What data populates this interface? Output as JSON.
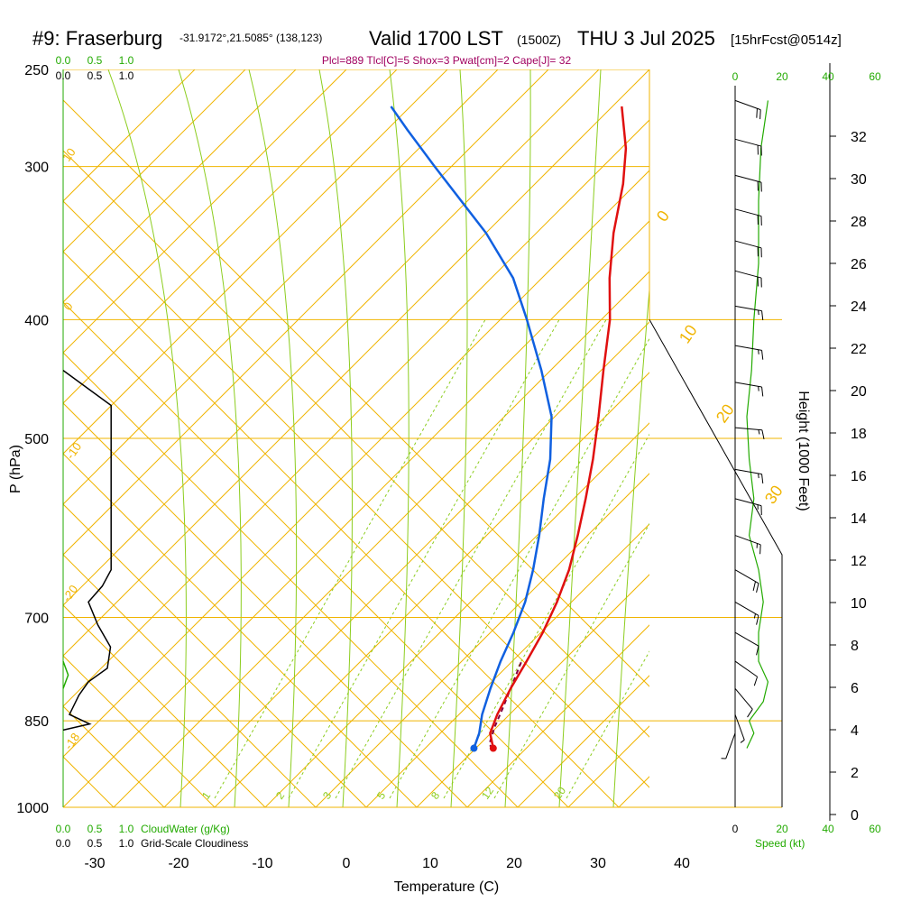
{
  "header": {
    "station": "#9: Fraserburg",
    "coords": "-31.9172°,21.5085° (138,123)",
    "valid": "Valid 1700 LST",
    "utc": "(1500Z)",
    "date": "THU 3 Jul 2025",
    "forecast": "[15hrFcst@0514z]",
    "params": "Plcl=889 Tlcl[C]=5 Shox=3 Pwat[cm]=2 Cape[J]= 32"
  },
  "colors": {
    "isobar": "#f0b400",
    "dry_adiabat": "#f0b400",
    "moist_adiabat": "#8ccd1e",
    "mixing_ratio": "#8ccd1e",
    "temperature": "#e01010",
    "dewpoint": "#1060e0",
    "parcel": "#800040",
    "cloud": "#000000",
    "green_text": "#22aa00",
    "param_text": "#a00060"
  },
  "chart_data": {
    "type": "skew-t",
    "xlabel": "Temperature (C)",
    "ylabel": "P (hPa)",
    "y2label": "Height (1000 Feet)",
    "x_ticks": [
      -30,
      -20,
      -10,
      0,
      10,
      20,
      30,
      40
    ],
    "p_ticks": [
      250,
      300,
      400,
      500,
      700,
      850,
      1000
    ],
    "height_ticks": [
      0,
      2,
      4,
      6,
      8,
      10,
      12,
      14,
      16,
      18,
      20,
      22,
      24,
      26,
      28,
      30,
      32
    ],
    "dry_adiabat_labels": [
      "0",
      "10",
      "20",
      "30",
      "10",
      "0",
      "-10",
      "-20",
      "-18"
    ],
    "mixing_ratio_labels": [
      "1",
      "2",
      "3",
      "5",
      "8",
      "12",
      "20"
    ],
    "cloud_axis_labels_top": [
      "0.0",
      "0.5",
      "1.0"
    ],
    "cloud_axis_labels_bottom": [
      "0.0",
      "0.5",
      "1.0"
    ],
    "cloud_water_label": "CloudWater (g/Kg)",
    "cloudiness_label": "Grid-Scale Cloudiness",
    "speed_ticks": [
      "0",
      "20",
      "40",
      "60"
    ],
    "speed_label": "Speed (kt)",
    "temperature": [
      {
        "p": 895,
        "t": 12.3
      },
      {
        "p": 870,
        "t": 10.6
      },
      {
        "p": 840,
        "t": 9.8
      },
      {
        "p": 800,
        "t": 9.1
      },
      {
        "p": 760,
        "t": 8.6
      },
      {
        "p": 720,
        "t": 8.0
      },
      {
        "p": 680,
        "t": 7.0
      },
      {
        "p": 640,
        "t": 5.6
      },
      {
        "p": 600,
        "t": 3.6
      },
      {
        "p": 560,
        "t": 1.3
      },
      {
        "p": 520,
        "t": -1.3
      },
      {
        "p": 480,
        "t": -4.4
      },
      {
        "p": 440,
        "t": -7.9
      },
      {
        "p": 400,
        "t": -11.6
      },
      {
        "p": 370,
        "t": -15.3
      },
      {
        "p": 340,
        "t": -18.8
      },
      {
        "p": 310,
        "t": -22.0
      },
      {
        "p": 290,
        "t": -24.8
      },
      {
        "p": 268,
        "t": -29.0
      }
    ],
    "dewpoint": [
      {
        "p": 895,
        "t": 10.0
      },
      {
        "p": 870,
        "t": 9.3
      },
      {
        "p": 840,
        "t": 8.0
      },
      {
        "p": 800,
        "t": 6.7
      },
      {
        "p": 760,
        "t": 5.5
      },
      {
        "p": 720,
        "t": 4.5
      },
      {
        "p": 680,
        "t": 3.2
      },
      {
        "p": 640,
        "t": 1.3
      },
      {
        "p": 600,
        "t": -1.0
      },
      {
        "p": 560,
        "t": -3.7
      },
      {
        "p": 520,
        "t": -6.4
      },
      {
        "p": 480,
        "t": -10.0
      },
      {
        "p": 440,
        "t": -15.3
      },
      {
        "p": 400,
        "t": -21.5
      },
      {
        "p": 370,
        "t": -26.8
      },
      {
        "p": 340,
        "t": -34.0
      },
      {
        "p": 300,
        "t": -46.0
      },
      {
        "p": 280,
        "t": -52.5
      },
      {
        "p": 268,
        "t": -56.5
      }
    ],
    "parcel": [
      {
        "p": 895,
        "t": 12.3
      },
      {
        "p": 889,
        "t": 11.5
      },
      {
        "p": 860,
        "t": 10.6
      },
      {
        "p": 830,
        "t": 9.9
      },
      {
        "p": 800,
        "t": 9.1
      },
      {
        "p": 760,
        "t": 8.0
      }
    ],
    "cloud_water": [
      {
        "p": 760,
        "t": 0.0
      },
      {
        "p": 780,
        "t": 0.08
      },
      {
        "p": 800,
        "t": 0.0
      }
    ],
    "cloudiness": [
      {
        "p": 440,
        "t": 0.0
      },
      {
        "p": 470,
        "t": 0.76
      },
      {
        "p": 640,
        "t": 0.76
      },
      {
        "p": 660,
        "t": 0.62
      },
      {
        "p": 680,
        "t": 0.4
      },
      {
        "p": 710,
        "t": 0.55
      },
      {
        "p": 740,
        "t": 0.75
      },
      {
        "p": 770,
        "t": 0.7
      },
      {
        "p": 790,
        "t": 0.4
      },
      {
        "p": 810,
        "t": 0.25
      },
      {
        "p": 840,
        "t": 0.1
      },
      {
        "p": 855,
        "t": 0.42
      },
      {
        "p": 865,
        "t": 0.0
      }
    ],
    "wind_speed": [
      {
        "p": 895,
        "t": 5
      },
      {
        "p": 870,
        "t": 8
      },
      {
        "p": 850,
        "t": 6
      },
      {
        "p": 820,
        "t": 12
      },
      {
        "p": 790,
        "t": 14
      },
      {
        "p": 760,
        "t": 10
      },
      {
        "p": 720,
        "t": 10
      },
      {
        "p": 680,
        "t": 12
      },
      {
        "p": 640,
        "t": 10
      },
      {
        "p": 600,
        "t": 6
      },
      {
        "p": 560,
        "t": 8
      },
      {
        "p": 520,
        "t": 6
      },
      {
        "p": 480,
        "t": 5
      },
      {
        "p": 440,
        "t": 7
      },
      {
        "p": 400,
        "t": 8
      },
      {
        "p": 360,
        "t": 10
      },
      {
        "p": 320,
        "t": 10
      },
      {
        "p": 290,
        "t": 11
      },
      {
        "p": 265,
        "t": 14
      }
    ],
    "wind_barbs": [
      {
        "p": 265,
        "dir": 290,
        "spd": 20
      },
      {
        "p": 285,
        "dir": 285,
        "spd": 20
      },
      {
        "p": 305,
        "dir": 285,
        "spd": 20
      },
      {
        "p": 325,
        "dir": 285,
        "spd": 20
      },
      {
        "p": 345,
        "dir": 285,
        "spd": 20
      },
      {
        "p": 365,
        "dir": 285,
        "spd": 20
      },
      {
        "p": 390,
        "dir": 280,
        "spd": 15
      },
      {
        "p": 420,
        "dir": 280,
        "spd": 15
      },
      {
        "p": 450,
        "dir": 280,
        "spd": 15
      },
      {
        "p": 490,
        "dir": 275,
        "spd": 15
      },
      {
        "p": 530,
        "dir": 280,
        "spd": 15
      },
      {
        "p": 560,
        "dir": 285,
        "spd": 15
      },
      {
        "p": 600,
        "dir": 290,
        "spd": 15
      },
      {
        "p": 640,
        "dir": 300,
        "spd": 20
      },
      {
        "p": 680,
        "dir": 300,
        "spd": 15
      },
      {
        "p": 720,
        "dir": 300,
        "spd": 10
      },
      {
        "p": 760,
        "dir": 305,
        "spd": 10
      },
      {
        "p": 800,
        "dir": 320,
        "spd": 10
      },
      {
        "p": 840,
        "dir": 340,
        "spd": 5
      },
      {
        "p": 870,
        "dir": 20,
        "spd": 5
      }
    ]
  }
}
